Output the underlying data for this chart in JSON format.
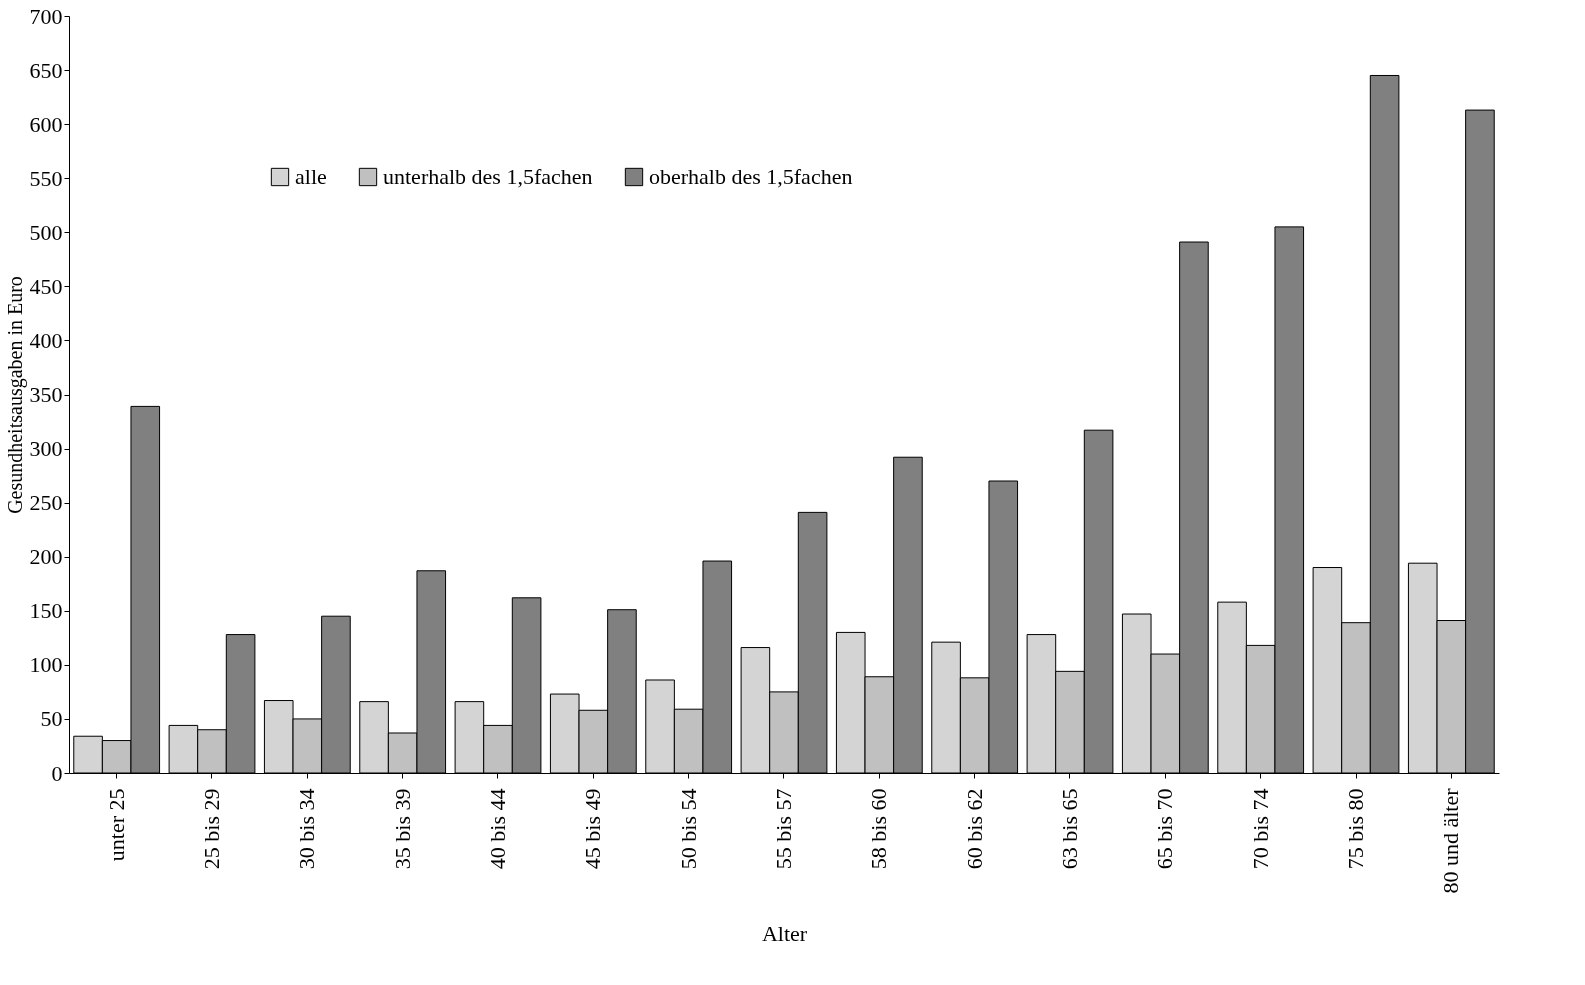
{
  "chart_data": {
    "type": "bar",
    "xlabel": "Alter",
    "ylabel": "Gesundheitsausgaben in Euro",
    "categories": [
      "unter 25",
      "25 bis 29",
      "30 bis 34",
      "35 bis 39",
      "40 bis 44",
      "45 bis 49",
      "50 bis 54",
      "55 bis 57",
      "58 bis 60",
      "60 bis 62",
      "63 bis 65",
      "65 bis 70",
      "70 bis 74",
      "75 bis 80",
      "80 und älter"
    ],
    "series": [
      {
        "name": "alle",
        "color": "#d4d4d4",
        "values": [
          34,
          44,
          67,
          66,
          66,
          73,
          86,
          116,
          130,
          121,
          128,
          147,
          158,
          190,
          194
        ]
      },
      {
        "name": "unterhalb des 1,5fachen",
        "color": "#c0c0c0",
        "values": [
          30,
          40,
          50,
          37,
          44,
          58,
          59,
          75,
          89,
          88,
          94,
          110,
          118,
          139,
          141
        ]
      },
      {
        "name": "oberhalb des 1,5fachen",
        "color": "#808080",
        "values": [
          339,
          128,
          145,
          187,
          162,
          151,
          196,
          241,
          292,
          270,
          317,
          491,
          505,
          645,
          613
        ]
      }
    ],
    "ylim": [
      0,
      700
    ],
    "yticks": [
      0,
      50,
      100,
      150,
      200,
      250,
      300,
      350,
      400,
      450,
      500,
      550,
      600,
      650,
      700
    ],
    "grid": false,
    "legend": "top left"
  }
}
